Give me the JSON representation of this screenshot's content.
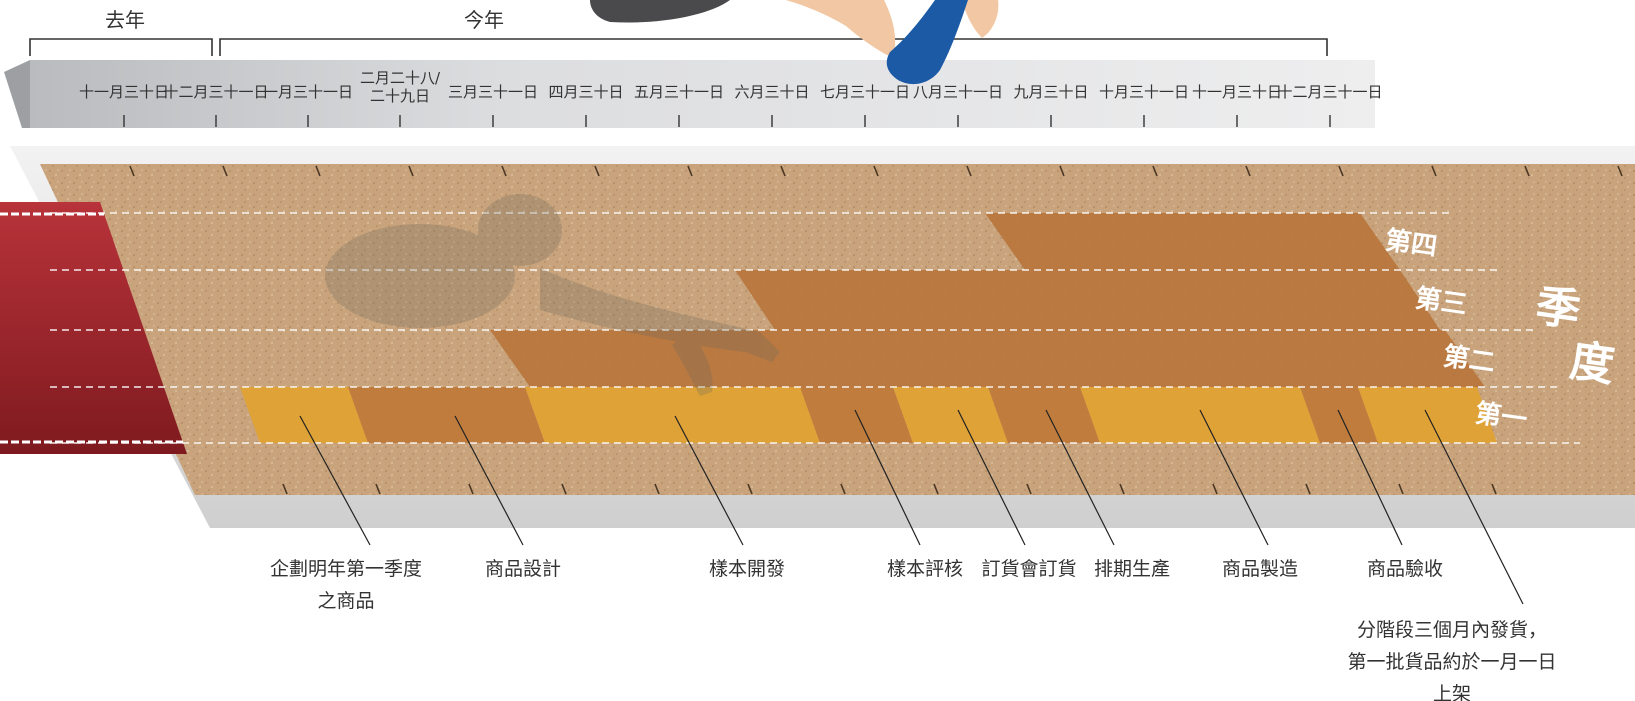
{
  "period_labels": {
    "last_year": "去年",
    "this_year": "今年"
  },
  "timeline_dates": [
    {
      "lines": [
        "十一月三十日"
      ]
    },
    {
      "lines": [
        "十二月三十一日"
      ]
    },
    {
      "lines": [
        "一月三十一日"
      ]
    },
    {
      "lines": [
        "二月二十八/",
        "二十九日"
      ]
    },
    {
      "lines": [
        "三月三十一日"
      ]
    },
    {
      "lines": [
        "四月三十日"
      ]
    },
    {
      "lines": [
        "五月三十一日"
      ]
    },
    {
      "lines": [
        "六月三十日"
      ]
    },
    {
      "lines": [
        "七月三十一日"
      ]
    },
    {
      "lines": [
        "八月三十一日"
      ]
    },
    {
      "lines": [
        "九月三十日"
      ]
    },
    {
      "lines": [
        "十月三十一日"
      ]
    },
    {
      "lines": [
        "十一月三十日"
      ]
    },
    {
      "lines": [
        "十二月三十一日"
      ]
    }
  ],
  "quarter_lanes": [
    "第一",
    "第二",
    "第三",
    "第四"
  ],
  "quarter_title": [
    "季",
    "度"
  ],
  "stages": [
    {
      "lines": [
        "企劃明年第一季度",
        "之商品"
      ],
      "color": "#e0a233"
    },
    {
      "lines": [
        "商品設計"
      ],
      "color": "#c07a3a"
    },
    {
      "lines": [
        "樣本開發"
      ],
      "color": "#e0a233"
    },
    {
      "lines": [
        "樣本評核"
      ],
      "color": "#c07a3a"
    },
    {
      "lines": [
        "訂貨會訂貨"
      ],
      "color": "#e0a233"
    },
    {
      "lines": [
        "排期生產"
      ],
      "color": "#c07a3a"
    },
    {
      "lines": [
        "商品製造"
      ],
      "color": "#e0a233"
    },
    {
      "lines": [
        "商品驗收"
      ],
      "color": "#c07a3a"
    },
    {
      "lines": [
        "分階段三個月內發貨，",
        "第一批貨品約於一月一日",
        "上架"
      ],
      "color": "#e0a233"
    }
  ],
  "colors": {
    "track_bar": "#b8753c",
    "track_surface": "#c9a47e",
    "runway_red": "#a3262c",
    "shoe_blue": "#1c5aa6"
  }
}
